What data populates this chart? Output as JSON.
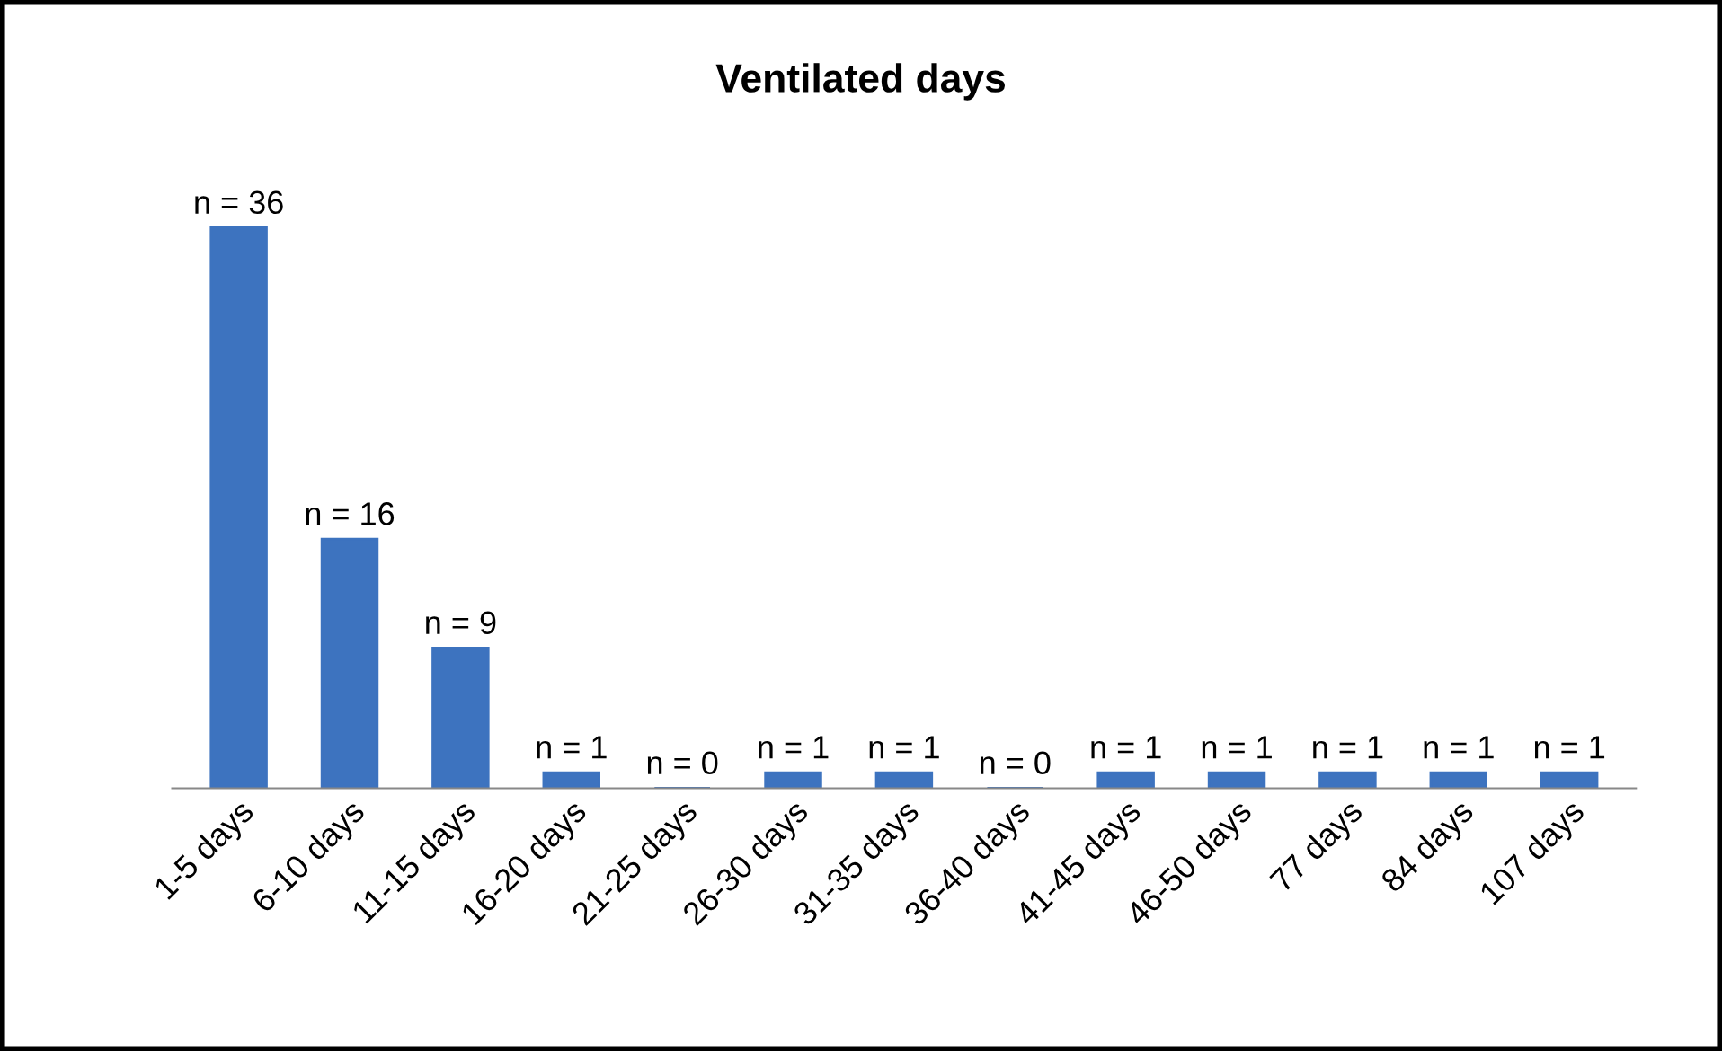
{
  "chart_data": {
    "type": "bar",
    "title": "Ventilated days",
    "categories": [
      "1-5 days",
      "6-10 days",
      "11-15 days",
      "16-20 days",
      "21-25 days",
      "26-30 days",
      "31-35 days",
      "36-40 days",
      "41-45 days",
      "46-50 days",
      "77 days",
      "84 days",
      "107 days"
    ],
    "values": [
      36,
      16,
      9,
      1,
      0,
      1,
      1,
      0,
      1,
      1,
      1,
      1,
      1
    ],
    "value_labels": [
      "n = 36",
      "n = 16",
      "n = 9",
      "n = 1",
      "n = 0",
      "n = 1",
      "n = 1",
      "n = 0",
      "n = 1",
      "n = 1",
      "n = 1",
      "n = 1",
      "n = 1"
    ],
    "color": "#3d73bf",
    "grid": false,
    "legend": false,
    "tick_labels": "x"
  }
}
